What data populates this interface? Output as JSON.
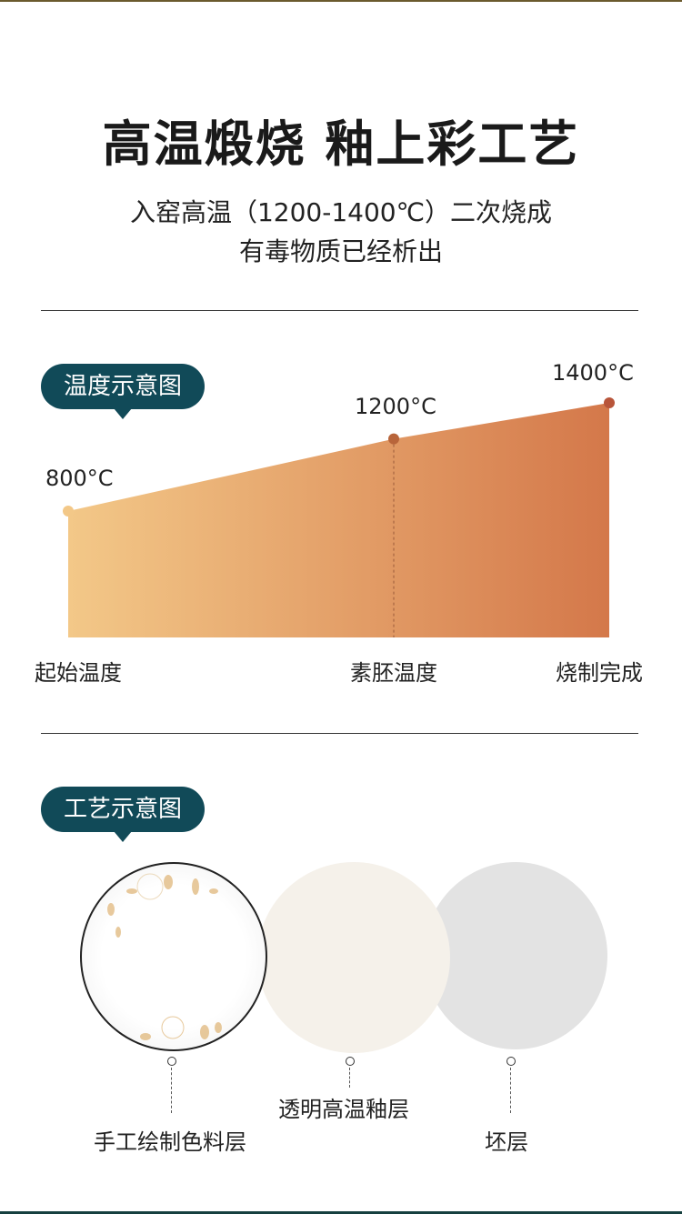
{
  "header": {
    "title": "高温煅烧 釉上彩工艺",
    "subtitle_line1": "入窑高温（1200-1400℃）二次烧成",
    "subtitle_line2": "有毒物质已经析出"
  },
  "temperature_section": {
    "badge": "温度示意图"
  },
  "chart_data": {
    "type": "area",
    "categories": [
      "起始温度",
      "素胚温度",
      "烧制完成"
    ],
    "values": [
      800,
      1200,
      1400
    ],
    "data_labels": [
      "800°C",
      "1200°C",
      "1400°C"
    ],
    "unit": "°C",
    "gradient_colors": [
      "#f3c888",
      "#d4784a"
    ],
    "marker_colors": [
      "#f3c888",
      "#b8653a",
      "#b8553a"
    ]
  },
  "craft_section": {
    "badge": "工艺示意图",
    "layers": [
      {
        "label": "手工绘制色料层",
        "color": "#ffffff"
      },
      {
        "label": "透明高温釉层",
        "color": "#f5f1ea"
      },
      {
        "label": "坯层",
        "color": "#e3e3e3"
      }
    ]
  }
}
